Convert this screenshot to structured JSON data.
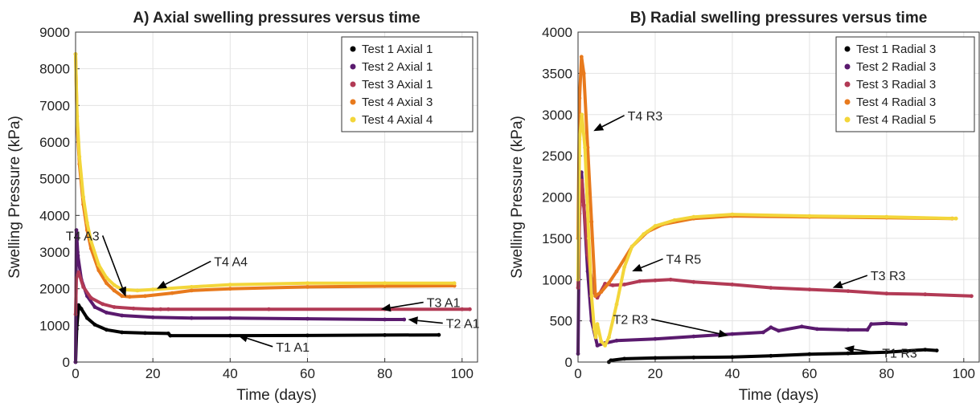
{
  "chart_data": [
    {
      "type": "line",
      "title": "A) Axial swelling pressures versus time",
      "xlabel": "Time (days)",
      "ylabel": "Swelling Pressure (kPa)",
      "xlim": [
        0,
        104
      ],
      "ylim": [
        0,
        9000
      ],
      "xticks": [
        "0",
        "20",
        "40",
        "60",
        "80",
        "100"
      ],
      "yticks": [
        "0",
        "1000",
        "2000",
        "3000",
        "4000",
        "5000",
        "6000",
        "7000",
        "8000",
        "9000"
      ],
      "grid": true,
      "legend": "top-right",
      "series": [
        {
          "name": "Test 1 Axial 1",
          "color": "#000000",
          "points": [
            [
              0,
              0
            ],
            [
              0.3,
              900
            ],
            [
              0.8,
              1550
            ],
            [
              1.5,
              1450
            ],
            [
              3,
              1200
            ],
            [
              5,
              1020
            ],
            [
              8,
              880
            ],
            [
              12,
              810
            ],
            [
              18,
              790
            ],
            [
              24,
              780
            ],
            [
              24.5,
              720
            ],
            [
              40,
              720
            ],
            [
              60,
              725
            ],
            [
              80,
              735
            ],
            [
              94,
              740
            ]
          ]
        },
        {
          "name": "Test 2 Axial 1",
          "color": "#5a1a6e",
          "points": [
            [
              0,
              0
            ],
            [
              0.2,
              3600
            ],
            [
              0.6,
              2900
            ],
            [
              1.5,
              2250
            ],
            [
              3,
              1800
            ],
            [
              5,
              1500
            ],
            [
              8,
              1350
            ],
            [
              12,
              1270
            ],
            [
              20,
              1220
            ],
            [
              30,
              1200
            ],
            [
              40,
              1200
            ],
            [
              60,
              1180
            ],
            [
              80,
              1160
            ],
            [
              85,
              1160
            ]
          ]
        },
        {
          "name": "Test 3 Axial 1",
          "color": "#b23a55",
          "points": [
            [
              0,
              1300
            ],
            [
              0.2,
              2300
            ],
            [
              0.8,
              2450
            ],
            [
              2,
              2050
            ],
            [
              4,
              1750
            ],
            [
              7,
              1580
            ],
            [
              10,
              1500
            ],
            [
              15,
              1460
            ],
            [
              20,
              1440
            ],
            [
              22,
              1440
            ],
            [
              24,
              1440
            ],
            [
              50,
              1440
            ],
            [
              80,
              1440
            ],
            [
              100,
              1440
            ],
            [
              102,
              1440
            ]
          ]
        },
        {
          "name": "Test 4 Axial 3",
          "color": "#e87a1d",
          "points": [
            [
              0,
              8400
            ],
            [
              0.4,
              6500
            ],
            [
              1,
              5400
            ],
            [
              2,
              4300
            ],
            [
              3,
              3600
            ],
            [
              4,
              3100
            ],
            [
              6,
              2500
            ],
            [
              8,
              2150
            ],
            [
              10,
              1950
            ],
            [
              12,
              1800
            ],
            [
              14,
              1780
            ],
            [
              18,
              1800
            ],
            [
              25,
              1880
            ],
            [
              30,
              1950
            ],
            [
              40,
              2000
            ],
            [
              60,
              2050
            ],
            [
              80,
              2070
            ],
            [
              98,
              2080
            ]
          ]
        },
        {
          "name": "Test 4 Axial 4",
          "color": "#f3d63a",
          "points": [
            [
              0,
              8400
            ],
            [
              0.4,
              6700
            ],
            [
              1,
              5600
            ],
            [
              2,
              4500
            ],
            [
              3,
              3800
            ],
            [
              4,
              3300
            ],
            [
              6,
              2650
            ],
            [
              8,
              2300
            ],
            [
              10,
              2100
            ],
            [
              12,
              1980
            ],
            [
              16,
              1950
            ],
            [
              20,
              1980
            ],
            [
              30,
              2050
            ],
            [
              40,
              2110
            ],
            [
              60,
              2150
            ],
            [
              80,
              2150
            ],
            [
              98,
              2150
            ]
          ]
        }
      ],
      "annotations": [
        {
          "text": "T4 A3",
          "x": 13,
          "y": 1780,
          "tx": 7,
          "ty": 3450
        },
        {
          "text": "T4 A4",
          "x": 21,
          "y": 2000,
          "tx": 35,
          "ty": 2750
        },
        {
          "text": "T3 A1",
          "x": 79,
          "y": 1440,
          "tx": 90,
          "ty": 1630
        },
        {
          "text": "T2 A1",
          "x": 86,
          "y": 1160,
          "tx": 95,
          "ty": 1060
        },
        {
          "text": "T1 A1",
          "x": 42,
          "y": 730,
          "tx": 51,
          "ty": 420
        }
      ]
    },
    {
      "type": "line",
      "title": "B) Radial swelling pressures versus time",
      "xlabel": "Time (days)",
      "ylabel": "Swelling Pressure (kPa)",
      "xlim": [
        0,
        104
      ],
      "ylim": [
        0,
        4000
      ],
      "xticks": [
        "0",
        "20",
        "40",
        "60",
        "80",
        "100"
      ],
      "yticks": [
        "0",
        "500",
        "1000",
        "1500",
        "2000",
        "2500",
        "3000",
        "3500",
        "4000"
      ],
      "grid": true,
      "legend": "top-right",
      "series": [
        {
          "name": "Test 1 Radial 3",
          "color": "#000000",
          "points": [
            [
              8,
              0
            ],
            [
              8.5,
              20
            ],
            [
              12,
              40
            ],
            [
              20,
              50
            ],
            [
              30,
              55
            ],
            [
              40,
              60
            ],
            [
              50,
              75
            ],
            [
              60,
              95
            ],
            [
              70,
              105
            ],
            [
              80,
              120
            ],
            [
              90,
              150
            ],
            [
              93,
              140
            ]
          ]
        },
        {
          "name": "Test 2 Radial 3",
          "color": "#5a1a6e",
          "points": [
            [
              0,
              100
            ],
            [
              0.4,
              1900
            ],
            [
              0.9,
              2300
            ],
            [
              1.5,
              1900
            ],
            [
              2.5,
              1100
            ],
            [
              3.5,
              500
            ],
            [
              5,
              200
            ],
            [
              7,
              230
            ],
            [
              10,
              260
            ],
            [
              20,
              280
            ],
            [
              30,
              310
            ],
            [
              40,
              340
            ],
            [
              48,
              360
            ],
            [
              50,
              420
            ],
            [
              52,
              380
            ],
            [
              58,
              430
            ],
            [
              62,
              400
            ],
            [
              70,
              390
            ],
            [
              75,
              390
            ],
            [
              76,
              460
            ],
            [
              80,
              470
            ],
            [
              85,
              460
            ]
          ]
        },
        {
          "name": "Test 3 Radial 3",
          "color": "#b23a55",
          "points": [
            [
              0,
              900
            ],
            [
              0.4,
              1800
            ],
            [
              1,
              2200
            ],
            [
              1.5,
              1900
            ],
            [
              2.5,
              1300
            ],
            [
              4,
              850
            ],
            [
              5,
              780
            ],
            [
              7,
              950
            ],
            [
              9,
              930
            ],
            [
              12,
              940
            ],
            [
              16,
              980
            ],
            [
              20,
              990
            ],
            [
              24,
              1000
            ],
            [
              30,
              970
            ],
            [
              40,
              940
            ],
            [
              50,
              900
            ],
            [
              60,
              880
            ],
            [
              70,
              860
            ],
            [
              80,
              830
            ],
            [
              90,
              820
            ],
            [
              102,
              800
            ]
          ]
        },
        {
          "name": "Test 4 Radial 3",
          "color": "#e87a1d",
          "points": [
            [
              0,
              1500
            ],
            [
              0.4,
              3200
            ],
            [
              0.9,
              3700
            ],
            [
              1.5,
              3500
            ],
            [
              2.5,
              2600
            ],
            [
              3.5,
              1700
            ],
            [
              4.5,
              800
            ],
            [
              6,
              850
            ],
            [
              8,
              960
            ],
            [
              10,
              1100
            ],
            [
              14,
              1400
            ],
            [
              18,
              1580
            ],
            [
              22,
              1670
            ],
            [
              30,
              1740
            ],
            [
              40,
              1770
            ],
            [
              60,
              1760
            ],
            [
              80,
              1750
            ],
            [
              97,
              1740
            ]
          ]
        },
        {
          "name": "Test 4 Radial 5",
          "color": "#f3d63a",
          "points": [
            [
              0,
              1000
            ],
            [
              0.4,
              2700
            ],
            [
              1,
              3000
            ],
            [
              1.8,
              2600
            ],
            [
              2.8,
              1500
            ],
            [
              3.5,
              800
            ],
            [
              4.2,
              400
            ],
            [
              4.6,
              300
            ],
            [
              5,
              460
            ],
            [
              6,
              250
            ],
            [
              7,
              200
            ],
            [
              8,
              300
            ],
            [
              10,
              700
            ],
            [
              12,
              1150
            ],
            [
              14,
              1400
            ],
            [
              17,
              1550
            ],
            [
              20,
              1650
            ],
            [
              25,
              1720
            ],
            [
              30,
              1760
            ],
            [
              40,
              1790
            ],
            [
              60,
              1770
            ],
            [
              80,
              1760
            ],
            [
              98,
              1740
            ]
          ]
        }
      ],
      "annotations": [
        {
          "text": "T4 R3",
          "x": 4,
          "y": 2800,
          "tx": 12,
          "ty": 2990
        },
        {
          "text": "T4 R5",
          "x": 14,
          "y": 1100,
          "tx": 22,
          "ty": 1250
        },
        {
          "text": "T3 R3",
          "x": 66,
          "y": 900,
          "tx": 75,
          "ty": 1050
        },
        {
          "text": "T2 R3",
          "x": 39,
          "y": 320,
          "tx": 19,
          "ty": 520
        },
        {
          "text": "T1 R3",
          "x": 69,
          "y": 170,
          "tx": 78,
          "ty": 110
        }
      ]
    }
  ]
}
